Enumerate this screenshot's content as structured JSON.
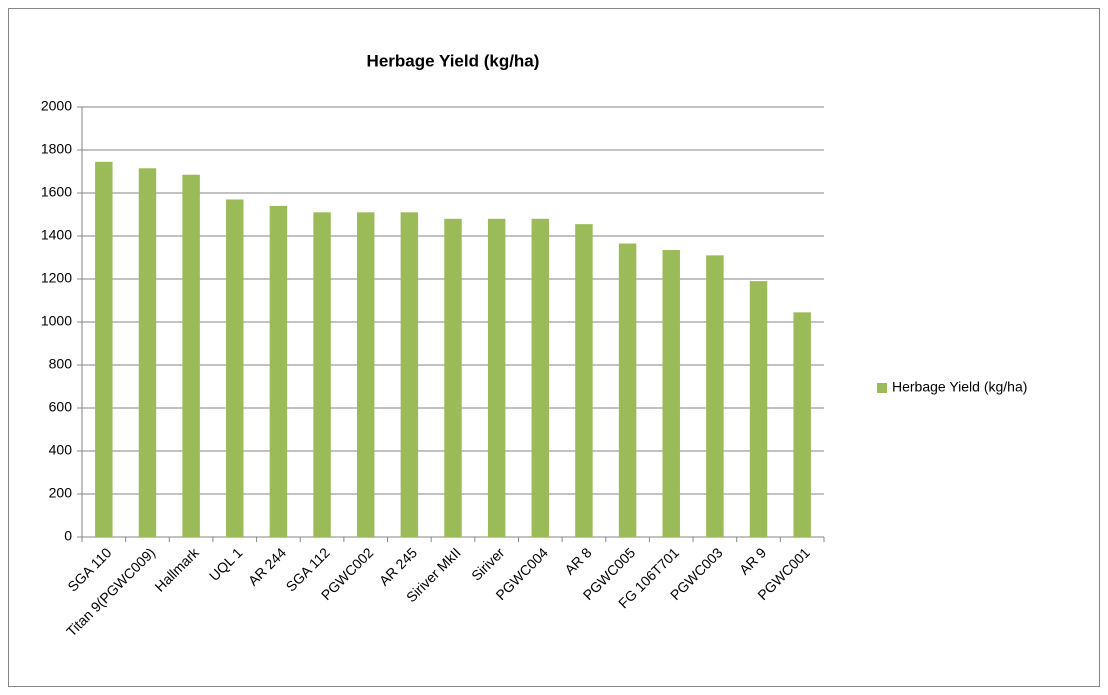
{
  "chart_data": {
    "type": "bar",
    "title": "Herbage Yield (kg/ha)",
    "categories": [
      "SGA 110",
      "Titan 9(PGWC009)",
      "Hallmark",
      "UQL 1",
      "AR 244",
      "SGA 112",
      "PGWC002",
      "AR 245",
      "Siriver MkII",
      "Siriver",
      "PGWC004",
      "AR 8",
      "PGWC005",
      "FG 106T701",
      "PGWC003",
      "AR 9",
      "PGWC001"
    ],
    "series": [
      {
        "name": "Herbage Yield (kg/ha)",
        "color": "#9bbb59",
        "values": [
          1745,
          1715,
          1685,
          1570,
          1540,
          1510,
          1510,
          1510,
          1480,
          1480,
          1480,
          1455,
          1365,
          1335,
          1310,
          1190,
          1045
        ]
      }
    ],
    "ylim": [
      0,
      2000
    ],
    "yticks": [
      0,
      200,
      400,
      600,
      800,
      1000,
      1200,
      1400,
      1600,
      1800,
      2000
    ],
    "grid": true,
    "legend": "right"
  }
}
